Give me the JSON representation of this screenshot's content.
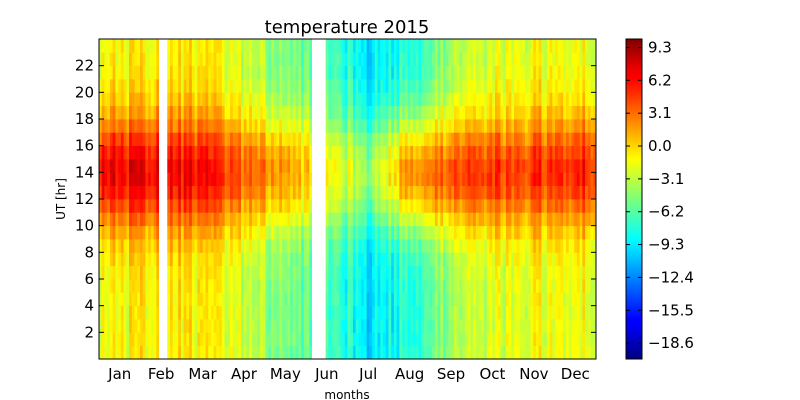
{
  "chart_data": {
    "type": "heatmap",
    "title": "temperature 2015",
    "xlabel": "months",
    "ylabel": "UT [hr]",
    "x_tick_labels": [
      "Jan",
      "Feb",
      "Mar",
      "Apr",
      "May",
      "Jun",
      "Jul",
      "Aug",
      "Sep",
      "Oct",
      "Nov",
      "Dec"
    ],
    "y_ticks": [
      2,
      4,
      6,
      8,
      10,
      12,
      14,
      16,
      18,
      20,
      22
    ],
    "ylim": [
      0,
      24
    ],
    "colorbar": {
      "colormap": "jet",
      "range": [
        -20.1,
        10.1
      ],
      "tick_labels": [
        "9.3",
        "6.2",
        "3.1",
        "0.0",
        "−3.1",
        "−6.2",
        "−9.3",
        "−12.4",
        "−15.5",
        "−18.6"
      ],
      "tick_values": [
        9.3,
        6.2,
        3.1,
        0.0,
        -3.1,
        -6.2,
        -9.3,
        -12.4,
        -15.5,
        -18.6
      ]
    },
    "profile_note_hours": [
      2,
      4,
      6,
      8,
      10,
      12,
      14,
      16,
      18,
      20,
      22
    ],
    "daily_profile_by_month": [
      {
        "month": "Jan",
        "night": -1.5,
        "day": 6.5
      },
      {
        "month": "Feb",
        "night": -0.5,
        "day": 7.0
      },
      {
        "month": "Mar",
        "night": -1.0,
        "day": 6.0
      },
      {
        "month": "Apr",
        "night": -3.0,
        "day": 3.5
      },
      {
        "month": "May",
        "night": -5.5,
        "day": 1.5
      },
      {
        "month": "Jun",
        "night": -6.5,
        "day": -1.0
      },
      {
        "month": "Jul",
        "night": -9.5,
        "day": -4.0
      },
      {
        "month": "Aug",
        "night": -7.5,
        "day": 2.5
      },
      {
        "month": "Sep",
        "night": -4.0,
        "day": 4.0
      },
      {
        "month": "Oct",
        "night": -2.5,
        "day": 4.5
      },
      {
        "month": "Nov",
        "night": -1.5,
        "day": 5.0
      },
      {
        "month": "Dec",
        "night": -1.5,
        "day": 5.5
      }
    ],
    "missing_data_periods": [
      {
        "start_month": 1.45,
        "end_month": 1.6
      },
      {
        "start_month": 5.1,
        "end_month": 5.45
      }
    ]
  }
}
